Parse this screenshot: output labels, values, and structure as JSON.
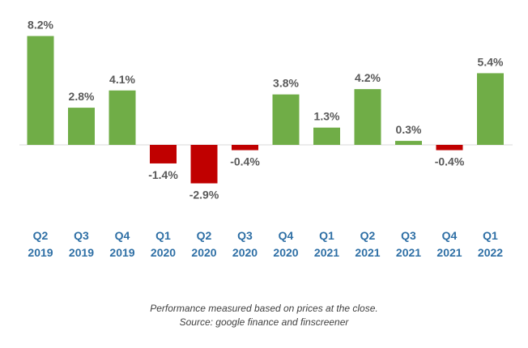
{
  "chart_data": {
    "type": "bar",
    "categories": [
      [
        "Q2",
        "2019"
      ],
      [
        "Q3",
        "2019"
      ],
      [
        "Q4",
        "2019"
      ],
      [
        "Q1",
        "2020"
      ],
      [
        "Q2",
        "2020"
      ],
      [
        "Q3",
        "2020"
      ],
      [
        "Q4",
        "2020"
      ],
      [
        "Q1",
        "2021"
      ],
      [
        "Q2",
        "2021"
      ],
      [
        "Q3",
        "2021"
      ],
      [
        "Q4",
        "2021"
      ],
      [
        "Q1",
        "2022"
      ]
    ],
    "values": [
      8.2,
      2.8,
      4.1,
      -1.4,
      -2.9,
      -0.4,
      3.8,
      1.3,
      4.2,
      0.3,
      -0.4,
      5.4
    ],
    "data_labels": [
      "8.2%",
      "2.8%",
      "4.1%",
      "-1.4%",
      "-2.9%",
      "-0.4%",
      "3.8%",
      "1.3%",
      "4.2%",
      "0.3%",
      "-0.4%",
      "5.4%"
    ],
    "positive_color": "#70ad47",
    "negative_color": "#c00000",
    "category_label_color": "#2e6fa5",
    "grid": false,
    "legend": "none"
  },
  "caption": {
    "line1": "Performance measured based on prices at the close.",
    "line2": "Source: google finance and finscreener"
  }
}
